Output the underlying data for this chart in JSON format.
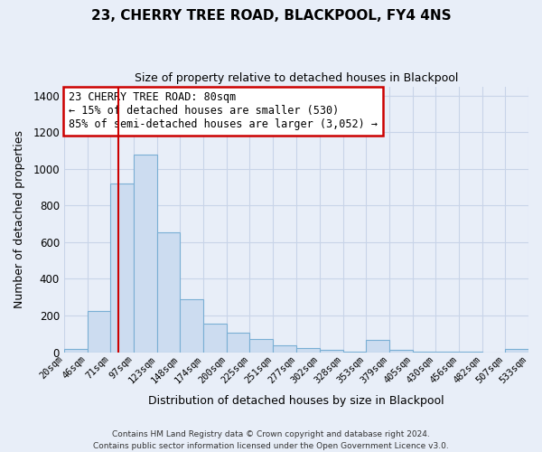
{
  "title": "23, CHERRY TREE ROAD, BLACKPOOL, FY4 4NS",
  "subtitle": "Size of property relative to detached houses in Blackpool",
  "xlabel": "Distribution of detached houses by size in Blackpool",
  "ylabel": "Number of detached properties",
  "bar_color": "#ccdcf0",
  "bar_edge_color": "#7aafd4",
  "background_color": "#e8eef8",
  "plot_bg_color": "#e8eef8",
  "grid_color": "#c8d4e8",
  "bin_edges": [
    20,
    46,
    71,
    97,
    123,
    148,
    174,
    200,
    225,
    251,
    277,
    302,
    328,
    353,
    379,
    405,
    430,
    456,
    482,
    507,
    533
  ],
  "bin_labels": [
    "20sqm",
    "46sqm",
    "71sqm",
    "97sqm",
    "123sqm",
    "148sqm",
    "174sqm",
    "200sqm",
    "225sqm",
    "251sqm",
    "277sqm",
    "302sqm",
    "328sqm",
    "353sqm",
    "379sqm",
    "405sqm",
    "430sqm",
    "456sqm",
    "482sqm",
    "507sqm",
    "533sqm"
  ],
  "counts": [
    15,
    225,
    920,
    1080,
    655,
    290,
    157,
    105,
    70,
    38,
    22,
    10,
    5,
    65,
    10,
    5,
    3,
    5,
    0,
    15
  ],
  "vline_x": 80,
  "vline_color": "#cc0000",
  "ylim": [
    0,
    1450
  ],
  "yticks": [
    0,
    200,
    400,
    600,
    800,
    1000,
    1200,
    1400
  ],
  "annotation_text": "23 CHERRY TREE ROAD: 80sqm\n← 15% of detached houses are smaller (530)\n85% of semi-detached houses are larger (3,052) →",
  "annotation_box_color": "#ffffff",
  "annotation_box_edge": "#cc0000",
  "footer_line1": "Contains HM Land Registry data © Crown copyright and database right 2024.",
  "footer_line2": "Contains public sector information licensed under the Open Government Licence v3.0."
}
